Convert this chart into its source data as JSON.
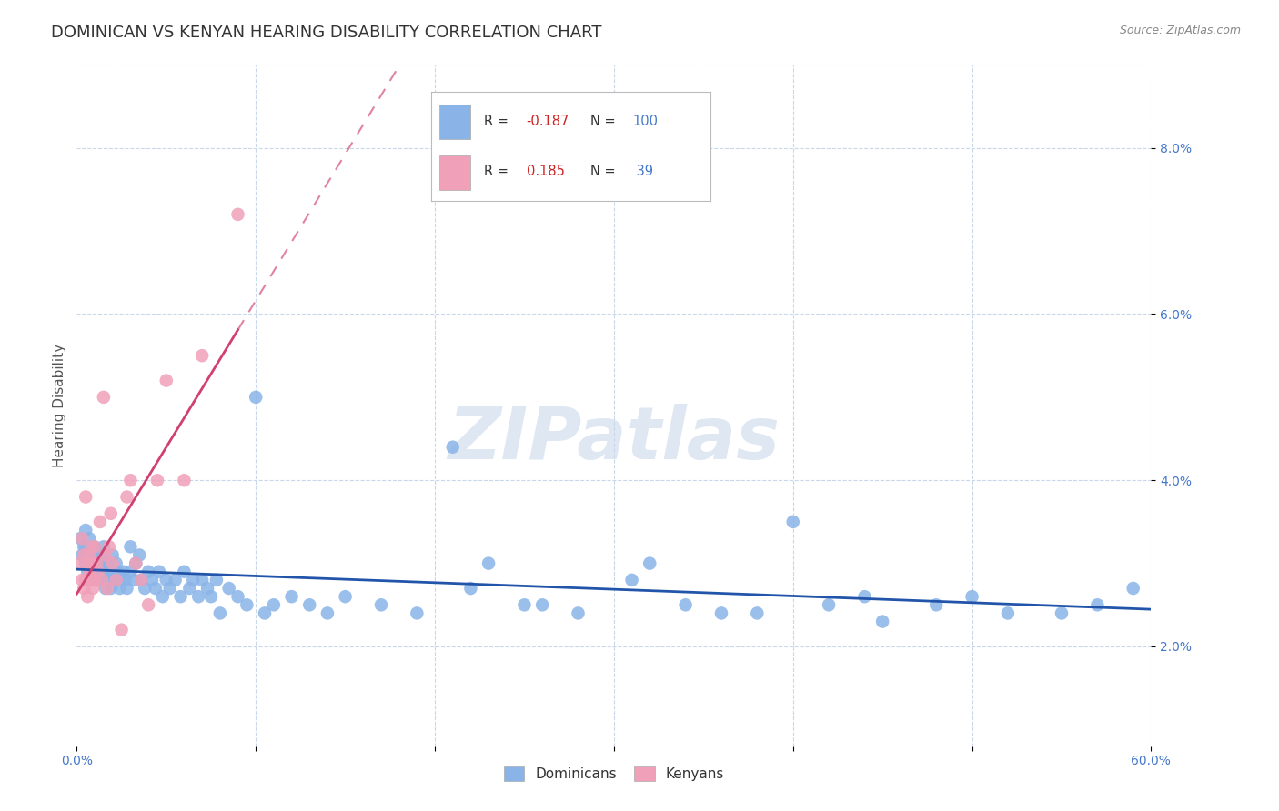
{
  "title": "DOMINICAN VS KENYAN HEARING DISABILITY CORRELATION CHART",
  "source": "Source: ZipAtlas.com",
  "ylabel": "Hearing Disability",
  "watermark": "ZIPatlas",
  "xlim": [
    0.0,
    0.6
  ],
  "ylim": [
    0.008,
    0.09
  ],
  "xtick_positions": [
    0.0,
    0.1,
    0.2,
    0.3,
    0.4,
    0.5,
    0.6
  ],
  "xtick_labels": [
    "0.0%",
    "",
    "",
    "",
    "",
    "",
    "60.0%"
  ],
  "ytick_positions": [
    0.02,
    0.04,
    0.06,
    0.08
  ],
  "ytick_labels": [
    "2.0%",
    "4.0%",
    "6.0%",
    "8.0%"
  ],
  "dominican_color": "#8ab4e8",
  "kenyan_color": "#f0a0b8",
  "dominican_line_color": "#2255aa",
  "kenyan_line_color": "#d04070",
  "background_color": "#ffffff",
  "grid_color": "#c8d8ea",
  "legend_R_dominican": "-0.187",
  "legend_N_dominican": "100",
  "legend_R_kenyan": "0.185",
  "legend_N_kenyan": "39",
  "dominican_x": [
    0.002,
    0.003,
    0.004,
    0.005,
    0.005,
    0.005,
    0.006,
    0.006,
    0.007,
    0.007,
    0.008,
    0.008,
    0.008,
    0.009,
    0.009,
    0.01,
    0.01,
    0.01,
    0.011,
    0.011,
    0.012,
    0.012,
    0.013,
    0.013,
    0.014,
    0.015,
    0.015,
    0.016,
    0.016,
    0.017,
    0.018,
    0.018,
    0.019,
    0.02,
    0.021,
    0.022,
    0.023,
    0.024,
    0.025,
    0.026,
    0.027,
    0.028,
    0.03,
    0.03,
    0.032,
    0.033,
    0.035,
    0.036,
    0.038,
    0.04,
    0.042,
    0.044,
    0.046,
    0.048,
    0.05,
    0.052,
    0.055,
    0.058,
    0.06,
    0.063,
    0.065,
    0.068,
    0.07,
    0.073,
    0.075,
    0.078,
    0.08,
    0.085,
    0.09,
    0.095,
    0.1,
    0.105,
    0.11,
    0.12,
    0.13,
    0.14,
    0.15,
    0.17,
    0.19,
    0.21,
    0.23,
    0.25,
    0.28,
    0.31,
    0.34,
    0.38,
    0.42,
    0.45,
    0.5,
    0.55,
    0.22,
    0.26,
    0.32,
    0.36,
    0.4,
    0.44,
    0.48,
    0.52,
    0.57,
    0.59
  ],
  "dominican_y": [
    0.033,
    0.031,
    0.032,
    0.03,
    0.032,
    0.034,
    0.029,
    0.031,
    0.03,
    0.033,
    0.028,
    0.03,
    0.031,
    0.029,
    0.03,
    0.032,
    0.03,
    0.028,
    0.029,
    0.031,
    0.03,
    0.028,
    0.031,
    0.029,
    0.028,
    0.03,
    0.032,
    0.029,
    0.027,
    0.03,
    0.028,
    0.029,
    0.027,
    0.031,
    0.028,
    0.03,
    0.029,
    0.027,
    0.028,
    0.029,
    0.028,
    0.027,
    0.032,
    0.029,
    0.028,
    0.03,
    0.031,
    0.028,
    0.027,
    0.029,
    0.028,
    0.027,
    0.029,
    0.026,
    0.028,
    0.027,
    0.028,
    0.026,
    0.029,
    0.027,
    0.028,
    0.026,
    0.028,
    0.027,
    0.026,
    0.028,
    0.024,
    0.027,
    0.026,
    0.025,
    0.05,
    0.024,
    0.025,
    0.026,
    0.025,
    0.024,
    0.026,
    0.025,
    0.024,
    0.044,
    0.03,
    0.025,
    0.024,
    0.028,
    0.025,
    0.024,
    0.025,
    0.023,
    0.026,
    0.024,
    0.027,
    0.025,
    0.03,
    0.024,
    0.035,
    0.026,
    0.025,
    0.024,
    0.025,
    0.027
  ],
  "kenyan_x": [
    0.002,
    0.003,
    0.003,
    0.004,
    0.004,
    0.005,
    0.005,
    0.006,
    0.006,
    0.007,
    0.007,
    0.008,
    0.008,
    0.009,
    0.009,
    0.01,
    0.01,
    0.011,
    0.012,
    0.013,
    0.014,
    0.015,
    0.016,
    0.017,
    0.018,
    0.019,
    0.02,
    0.022,
    0.025,
    0.028,
    0.03,
    0.033,
    0.036,
    0.04,
    0.045,
    0.05,
    0.06,
    0.07,
    0.09
  ],
  "kenyan_y": [
    0.03,
    0.028,
    0.033,
    0.027,
    0.031,
    0.028,
    0.038,
    0.03,
    0.026,
    0.029,
    0.031,
    0.028,
    0.032,
    0.03,
    0.027,
    0.032,
    0.028,
    0.03,
    0.029,
    0.035,
    0.028,
    0.05,
    0.031,
    0.027,
    0.032,
    0.036,
    0.03,
    0.028,
    0.022,
    0.038,
    0.04,
    0.03,
    0.028,
    0.025,
    0.04,
    0.052,
    0.04,
    0.055,
    0.072
  ],
  "title_fontsize": 13,
  "axis_label_fontsize": 11,
  "tick_fontsize": 10
}
